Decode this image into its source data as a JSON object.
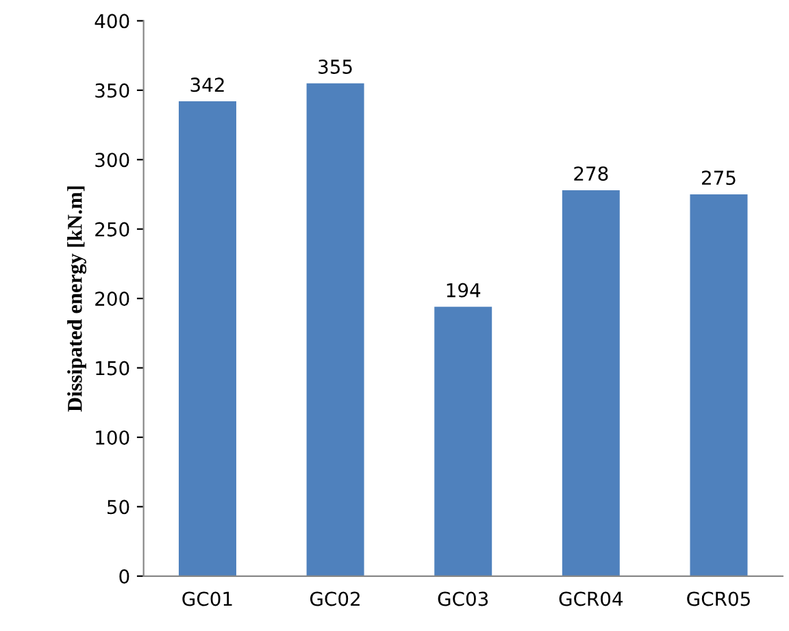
{
  "chart_data": {
    "type": "bar",
    "ylabel": "Dissipated energy [kN.m]",
    "categories": [
      "GC01",
      "GC02",
      "GC03",
      "GCR04",
      "GCR05"
    ],
    "values": [
      342,
      355,
      194,
      278,
      275
    ],
    "color": "#4f81bd",
    "ylim": [
      0,
      400
    ],
    "yticks": [
      0,
      50,
      100,
      150,
      200,
      250,
      300,
      350,
      400
    ],
    "data_labels": true,
    "grid": false
  }
}
